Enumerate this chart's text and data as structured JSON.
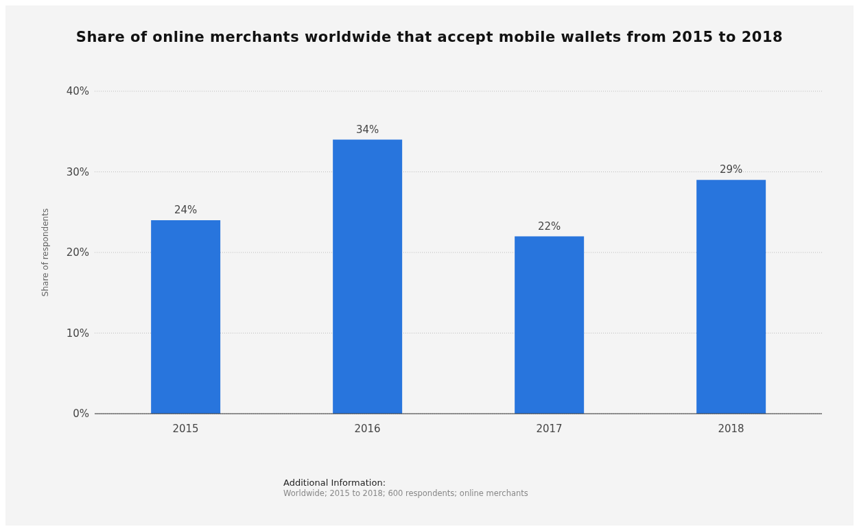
{
  "chart_data": {
    "type": "bar",
    "title": "Share of online merchants worldwide that accept mobile wallets from 2015 to 2018",
    "ylabel": "Share of respondents",
    "categories": [
      "2015",
      "2016",
      "2017",
      "2018"
    ],
    "values": [
      24,
      34,
      22,
      29
    ],
    "color": "#2875dd",
    "value_labels": [
      "24%",
      "34%",
      "22%",
      "29%"
    ],
    "ylim": [
      0,
      40
    ],
    "yticks": [
      {
        "value": 0,
        "label": "0%"
      },
      {
        "value": 10,
        "label": "10%"
      },
      {
        "value": 20,
        "label": "20%"
      },
      {
        "value": 30,
        "label": "30%"
      },
      {
        "value": 40,
        "label": "40%"
      }
    ],
    "grid": "y",
    "annotations": [
      "Additional Information:",
      "Worldwide; 2015 to 2018; 600 respondents; online merchants"
    ]
  }
}
